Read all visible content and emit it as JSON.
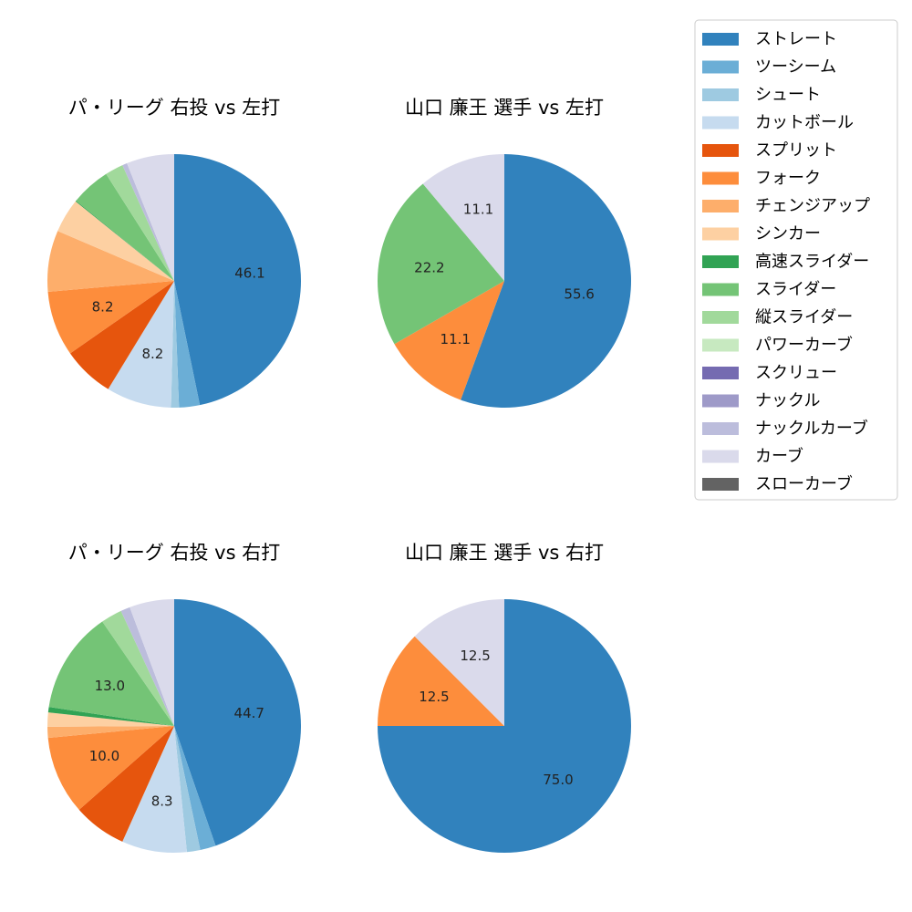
{
  "legend": {
    "items": [
      {
        "name": "ストレート",
        "color": "#3182bd"
      },
      {
        "name": "ツーシーム",
        "color": "#6baed6"
      },
      {
        "name": "シュート",
        "color": "#9ecae1"
      },
      {
        "name": "カットボール",
        "color": "#c6dbef"
      },
      {
        "name": "スプリット",
        "color": "#e6550d"
      },
      {
        "name": "フォーク",
        "color": "#fd8d3c"
      },
      {
        "name": "チェンジアップ",
        "color": "#fdae6b"
      },
      {
        "name": "シンカー",
        "color": "#fdd0a2"
      },
      {
        "name": "高速スライダー",
        "color": "#31a354"
      },
      {
        "name": "スライダー",
        "color": "#74c476"
      },
      {
        "name": "縦スライダー",
        "color": "#a1d99b"
      },
      {
        "name": "パワーカーブ",
        "color": "#c7e9c0"
      },
      {
        "name": "スクリュー",
        "color": "#756bb1"
      },
      {
        "name": "ナックル",
        "color": "#9e9ac8"
      },
      {
        "name": "ナックルカーブ",
        "color": "#bcbddc"
      },
      {
        "name": "カーブ",
        "color": "#dadaeb"
      },
      {
        "name": "スローカーブ",
        "color": "#636363"
      }
    ]
  },
  "chart_data": [
    {
      "type": "pie",
      "title": "パ・リーグ 右投 vs 左打",
      "slices": [
        {
          "category": "ストレート",
          "value": 46.1,
          "label": "46.1"
        },
        {
          "category": "ツーシーム",
          "value": 2.6,
          "label": ""
        },
        {
          "category": "シュート",
          "value": 1.0,
          "label": ""
        },
        {
          "category": "カットボール",
          "value": 8.2,
          "label": "8.2"
        },
        {
          "category": "スプリット",
          "value": 6.5,
          "label": ""
        },
        {
          "category": "フォーク",
          "value": 8.2,
          "label": "8.2"
        },
        {
          "category": "チェンジアップ",
          "value": 7.7,
          "label": ""
        },
        {
          "category": "シンカー",
          "value": 4.3,
          "label": ""
        },
        {
          "category": "高速スライダー",
          "value": 0.1,
          "label": ""
        },
        {
          "category": "スライダー",
          "value": 5.0,
          "label": ""
        },
        {
          "category": "縦スライダー",
          "value": 2.3,
          "label": ""
        },
        {
          "category": "ナックルカーブ",
          "value": 0.6,
          "label": ""
        },
        {
          "category": "カーブ",
          "value": 6.0,
          "label": ""
        }
      ]
    },
    {
      "type": "pie",
      "title": "山口 廉王 選手 vs 左打",
      "slices": [
        {
          "category": "ストレート",
          "value": 55.6,
          "label": "55.6"
        },
        {
          "category": "フォーク",
          "value": 11.1,
          "label": "11.1"
        },
        {
          "category": "スライダー",
          "value": 22.2,
          "label": "22.2"
        },
        {
          "category": "カーブ",
          "value": 11.1,
          "label": "11.1"
        }
      ]
    },
    {
      "type": "pie",
      "title": "パ・リーグ 右投 vs 右打",
      "slices": [
        {
          "category": "ストレート",
          "value": 44.7,
          "label": "44.7"
        },
        {
          "category": "ツーシーム",
          "value": 2.0,
          "label": ""
        },
        {
          "category": "シュート",
          "value": 1.7,
          "label": ""
        },
        {
          "category": "カットボール",
          "value": 8.3,
          "label": "8.3"
        },
        {
          "category": "スプリット",
          "value": 6.8,
          "label": ""
        },
        {
          "category": "フォーク",
          "value": 10.0,
          "label": "10.0"
        },
        {
          "category": "チェンジアップ",
          "value": 1.4,
          "label": ""
        },
        {
          "category": "シンカー",
          "value": 1.8,
          "label": ""
        },
        {
          "category": "高速スライダー",
          "value": 0.7,
          "label": ""
        },
        {
          "category": "スライダー",
          "value": 13.0,
          "label": "13.0"
        },
        {
          "category": "縦スライダー",
          "value": 2.7,
          "label": ""
        },
        {
          "category": "ナックルカーブ",
          "value": 1.2,
          "label": ""
        },
        {
          "category": "カーブ",
          "value": 5.7,
          "label": ""
        }
      ]
    },
    {
      "type": "pie",
      "title": "山口 廉王 選手 vs 右打",
      "slices": [
        {
          "category": "ストレート",
          "value": 75.0,
          "label": "75.0"
        },
        {
          "category": "フォーク",
          "value": 12.5,
          "label": "12.5"
        },
        {
          "category": "カーブ",
          "value": 12.5,
          "label": "12.5"
        }
      ]
    }
  ]
}
